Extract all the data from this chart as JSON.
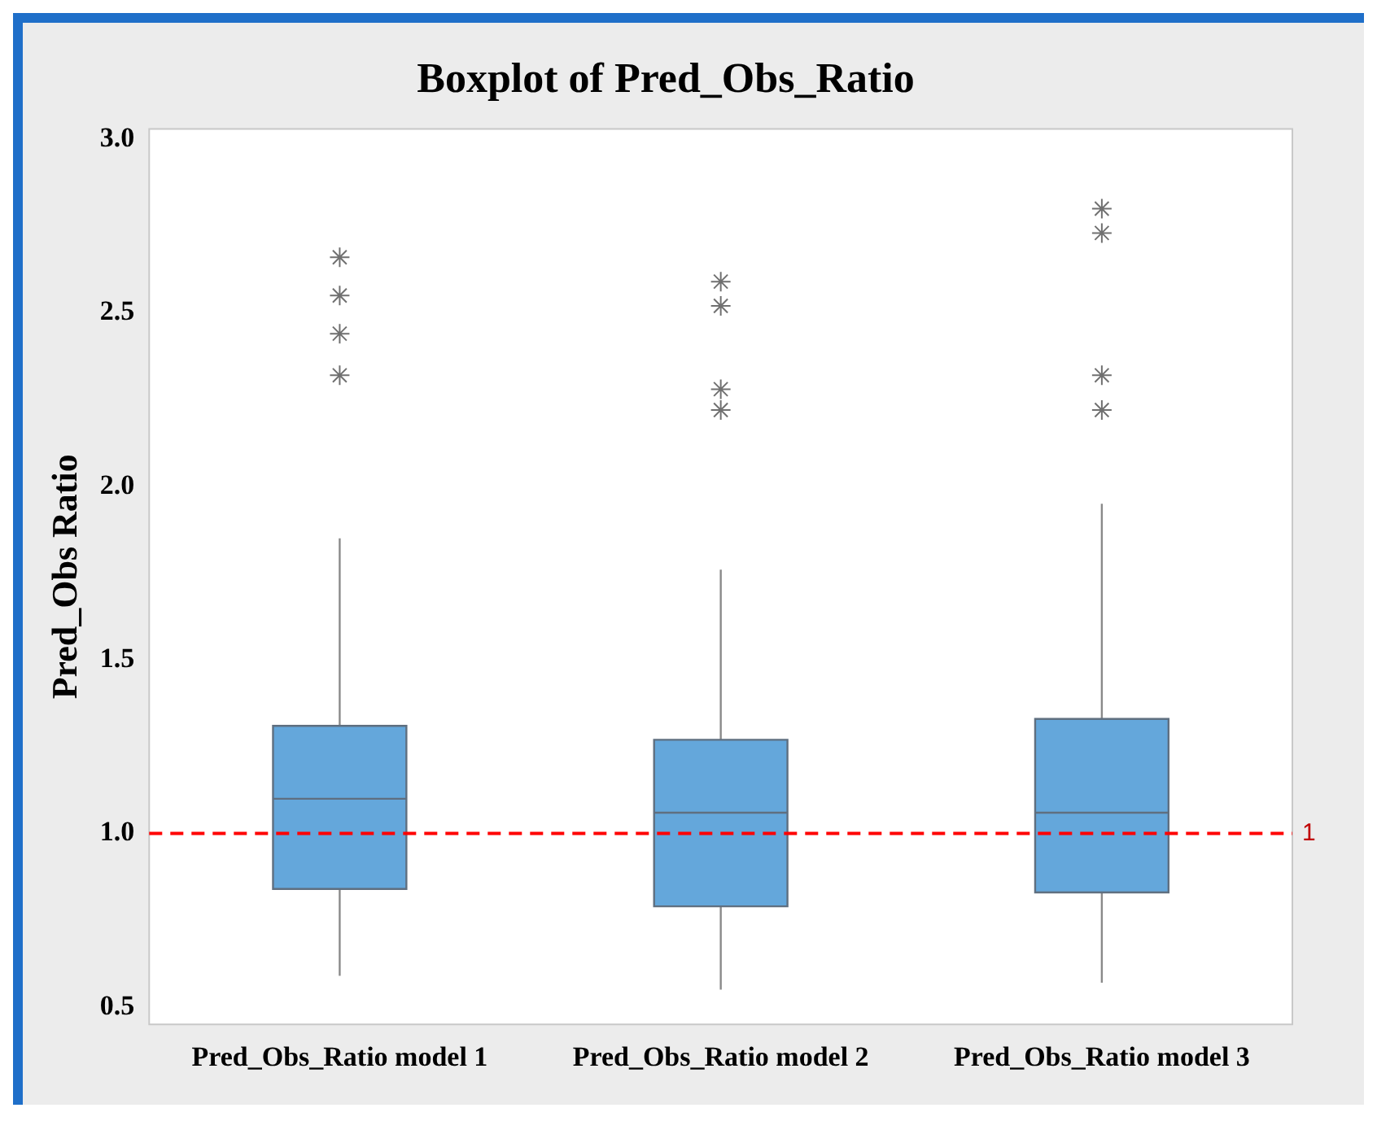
{
  "chart_data": {
    "type": "box",
    "title": "Boxplot of Pred_Obs_Ratio",
    "ylabel": "Pred_Obs Ratio",
    "categories": [
      "Pred_Obs_Ratio model 1",
      "Pred_Obs_Ratio model 2",
      "Pred_Obs_Ratio model 3"
    ],
    "color": "#64a7db",
    "boxes": [
      {
        "low": 0.59,
        "q1": 0.84,
        "median": 1.1,
        "q3": 1.31,
        "high": 1.85,
        "outliers": [
          2.32,
          2.44,
          2.55,
          2.66
        ]
      },
      {
        "low": 0.55,
        "q1": 0.79,
        "median": 1.06,
        "q3": 1.27,
        "high": 1.76,
        "outliers": [
          2.22,
          2.28,
          2.52,
          2.59
        ]
      },
      {
        "low": 0.57,
        "q1": 0.83,
        "median": 1.06,
        "q3": 1.33,
        "high": 1.95,
        "outliers": [
          2.22,
          2.32,
          2.73,
          2.8
        ]
      }
    ],
    "ylim": [
      0.45,
      3.03
    ],
    "yticks": [
      0.5,
      {
        "value": 1,
        "label": "1.0"
      },
      1.5,
      {
        "value": 2,
        "label": "2.0"
      },
      2.5,
      {
        "value": 3,
        "label": "3.0"
      }
    ],
    "ref_lines": [
      {
        "axis": "y",
        "value": 1,
        "label": "1",
        "color": "#ff0000",
        "line_style": "dashed"
      }
    ],
    "grid": false,
    "legend": false
  }
}
